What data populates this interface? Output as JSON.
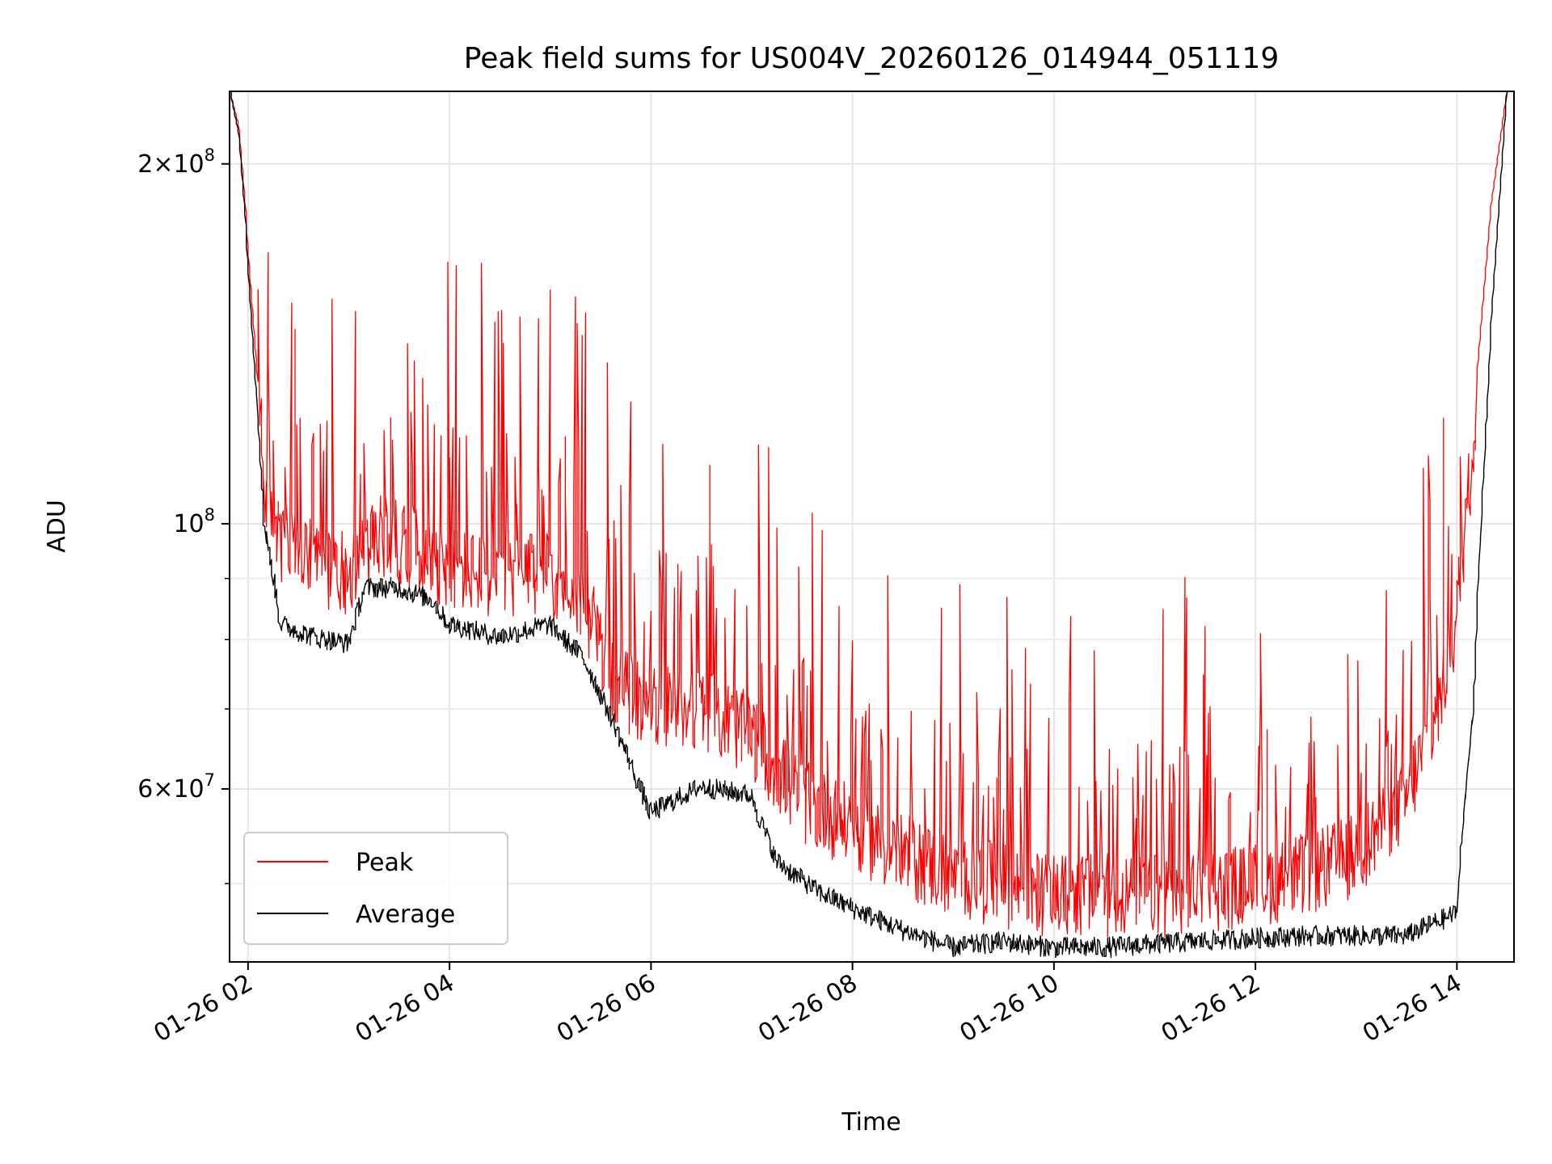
{
  "chart_data": {
    "type": "line",
    "title": "Peak field sums for US004V_20260126_014944_051119",
    "xlabel": "Time",
    "ylabel": "ADU",
    "yscale": "log",
    "xlim": [
      "2026-01-26 01:49",
      "2026-01-26 14:34"
    ],
    "ylim": [
      43000000,
      230000000
    ],
    "grid": true,
    "legend_position": "lower-left",
    "x_ticks": [
      {
        "t": "2026-01-26 02:00",
        "label": "01-26 02"
      },
      {
        "t": "2026-01-26 04:00",
        "label": "01-26 04"
      },
      {
        "t": "2026-01-26 06:00",
        "label": "01-26 06"
      },
      {
        "t": "2026-01-26 08:00",
        "label": "01-26 08"
      },
      {
        "t": "2026-01-26 10:00",
        "label": "01-26 10"
      },
      {
        "t": "2026-01-26 12:00",
        "label": "01-26 12"
      },
      {
        "t": "2026-01-26 14:00",
        "label": "01-26 14"
      }
    ],
    "y_major_ticks": [
      {
        "value": 60000000,
        "mantissa": "6",
        "exp": "7"
      },
      {
        "value": 100000000,
        "mantissa": "",
        "exp": "8"
      },
      {
        "value": 200000000,
        "mantissa": "2",
        "exp": "8"
      }
    ],
    "y_minor_ticks": [
      50000000,
      70000000,
      80000000,
      90000000
    ],
    "series": [
      {
        "name": "Peak",
        "color": "#ff0000",
        "points": [
          [
            "2026-01-26 01:50",
            230000000
          ],
          [
            "2026-01-26 01:55",
            215000000
          ],
          [
            "2026-01-26 02:00",
            175000000
          ],
          [
            "2026-01-26 02:10",
            110000000
          ],
          [
            "2026-01-26 02:20",
            98000000
          ],
          [
            "2026-01-26 02:40",
            95000000
          ],
          [
            "2026-01-26 03:00",
            93000000
          ],
          [
            "2026-01-26 03:20",
            100000000
          ],
          [
            "2026-01-26 03:40",
            98000000
          ],
          [
            "2026-01-26 04:00",
            94000000
          ],
          [
            "2026-01-26 04:30",
            92000000
          ],
          [
            "2026-01-26 05:00",
            93000000
          ],
          [
            "2026-01-26 05:20",
            88000000
          ],
          [
            "2026-01-26 05:40",
            75000000
          ],
          [
            "2026-01-26 06:00",
            72000000
          ],
          [
            "2026-01-26 06:30",
            72000000
          ],
          [
            "2026-01-26 07:00",
            68000000
          ],
          [
            "2026-01-26 07:30",
            60000000
          ],
          [
            "2026-01-26 08:00",
            57000000
          ],
          [
            "2026-01-26 08:30",
            54000000
          ],
          [
            "2026-01-26 09:00",
            52000000
          ],
          [
            "2026-01-26 09:30",
            51000000
          ],
          [
            "2026-01-26 10:00",
            50000000
          ],
          [
            "2026-01-26 11:00",
            50000000
          ],
          [
            "2026-01-26 12:00",
            51000000
          ],
          [
            "2026-01-26 12:30",
            52000000
          ],
          [
            "2026-01-26 13:00",
            54000000
          ],
          [
            "2026-01-26 13:30",
            60000000
          ],
          [
            "2026-01-26 13:50",
            72000000
          ],
          [
            "2026-01-26 14:00",
            85000000
          ],
          [
            "2026-01-26 14:10",
            120000000
          ],
          [
            "2026-01-26 14:20",
            180000000
          ],
          [
            "2026-01-26 14:30",
            230000000
          ]
        ]
      },
      {
        "name": "Average",
        "color": "#000000",
        "points": [
          [
            "2026-01-26 01:50",
            230000000
          ],
          [
            "2026-01-26 01:55",
            212000000
          ],
          [
            "2026-01-26 02:00",
            170000000
          ],
          [
            "2026-01-26 02:10",
            100000000
          ],
          [
            "2026-01-26 02:20",
            82000000
          ],
          [
            "2026-01-26 02:40",
            80000000
          ],
          [
            "2026-01-26 03:00",
            79000000
          ],
          [
            "2026-01-26 03:10",
            88000000
          ],
          [
            "2026-01-26 03:30",
            88000000
          ],
          [
            "2026-01-26 03:50",
            86000000
          ],
          [
            "2026-01-26 04:00",
            82000000
          ],
          [
            "2026-01-26 04:30",
            80000000
          ],
          [
            "2026-01-26 05:00",
            82000000
          ],
          [
            "2026-01-26 05:20",
            77000000
          ],
          [
            "2026-01-26 05:40",
            67000000
          ],
          [
            "2026-01-26 06:00",
            57000000
          ],
          [
            "2026-01-26 06:30",
            60000000
          ],
          [
            "2026-01-26 07:00",
            59000000
          ],
          [
            "2026-01-26 07:15",
            52000000
          ],
          [
            "2026-01-26 07:40",
            49000000
          ],
          [
            "2026-01-26 08:00",
            47500000
          ],
          [
            "2026-01-26 08:30",
            45500000
          ],
          [
            "2026-01-26 09:00",
            44000000
          ],
          [
            "2026-01-26 09:30",
            44500000
          ],
          [
            "2026-01-26 10:00",
            44000000
          ],
          [
            "2026-01-26 10:30",
            44000000
          ],
          [
            "2026-01-26 11:00",
            44300000
          ],
          [
            "2026-01-26 12:00",
            44800000
          ],
          [
            "2026-01-26 12:30",
            45000000
          ],
          [
            "2026-01-26 13:00",
            45000000
          ],
          [
            "2026-01-26 13:30",
            45000000
          ],
          [
            "2026-01-26 14:00",
            47000000
          ],
          [
            "2026-01-26 14:10",
            70000000
          ],
          [
            "2026-01-26 14:20",
            140000000
          ],
          [
            "2026-01-26 14:30",
            230000000
          ]
        ]
      }
    ]
  }
}
